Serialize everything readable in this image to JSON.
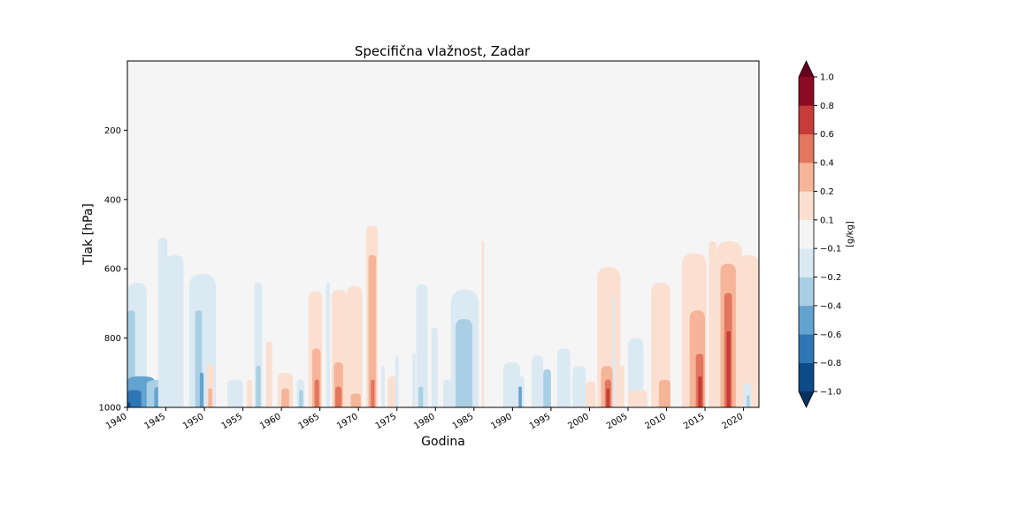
{
  "chart_data": {
    "type": "heatmap",
    "title": "Specifična vlažnost, Zadar",
    "xlabel": "Godina",
    "ylabel": "Tlak [hPa]",
    "xlim": [
      1940,
      2022
    ],
    "ylim": [
      1000,
      0
    ],
    "x_ticks": [
      1940,
      1945,
      1950,
      1955,
      1960,
      1965,
      1970,
      1975,
      1980,
      1985,
      1990,
      1995,
      2000,
      2005,
      2010,
      2015,
      2020
    ],
    "x_tick_labels": [
      "1940",
      "1945",
      "1950",
      "1955",
      "1960",
      "1965",
      "1970",
      "1975",
      "1980",
      "1985",
      "1990",
      "1995",
      "2000",
      "2005",
      "2010",
      "2015",
      "2020"
    ],
    "y_ticks": [
      200,
      400,
      600,
      800,
      1000
    ],
    "y_tick_labels": [
      "200",
      "400",
      "600",
      "800",
      "1000"
    ],
    "background_color": "#f5f5f5",
    "colorbar": {
      "label": "[g/kg]",
      "levels": [
        -1.0,
        -0.8,
        -0.6,
        -0.4,
        -0.2,
        -0.1,
        0.1,
        0.2,
        0.4,
        0.6,
        0.8,
        1.0
      ],
      "tick_labels": [
        "−1.0",
        "−0.8",
        "−0.6",
        "−0.4",
        "−0.2",
        "−0.1",
        "0.1",
        "0.2",
        "0.4",
        "0.6",
        "0.8",
        "1.0"
      ],
      "colors": [
        "#0d4a8a",
        "#2f77b4",
        "#63a3d0",
        "#a9cfe4",
        "#dbe9f3",
        "#f5f5f5",
        "#fbe0d2",
        "#f6b598",
        "#e2765e",
        "#c73b38",
        "#8c0a24"
      ],
      "under_color": "#053061",
      "over_color": "#67001f",
      "extend": "both"
    },
    "anomaly_columns": [
      {
        "x": [
          1940.0,
          1942.5
        ],
        "top": 640,
        "level": -1
      },
      {
        "x": [
          1940.0,
          1941.0
        ],
        "top": 720,
        "level": -2
      },
      {
        "x": [
          1940.0,
          1943.5
        ],
        "top": 910,
        "level": -3
      },
      {
        "x": [
          1940.0,
          1941.8
        ],
        "top": 950,
        "level": -4
      },
      {
        "x": [
          1940.0,
          1940.4
        ],
        "top": 985,
        "level": -5
      },
      {
        "x": [
          1942.5,
          1946.8
        ],
        "top": 920,
        "level": -2
      },
      {
        "x": [
          1943.5,
          1945.5
        ],
        "top": 940,
        "level": -3
      },
      {
        "x": [
          1944.0,
          1945.2
        ],
        "top": 510,
        "level": -1
      },
      {
        "x": [
          1945.0,
          1947.3
        ],
        "top": 560,
        "level": -1
      },
      {
        "x": [
          1948.0,
          1951.5
        ],
        "top": 615,
        "level": -1
      },
      {
        "x": [
          1948.8,
          1949.7
        ],
        "top": 720,
        "level": -2
      },
      {
        "x": [
          1949.4,
          1949.9
        ],
        "top": 900,
        "level": -3
      },
      {
        "x": [
          1950.3,
          1951.2
        ],
        "top": 875,
        "level": 1
      },
      {
        "x": [
          1950.5,
          1951.0
        ],
        "top": 945,
        "level": 2
      },
      {
        "x": [
          1953.0,
          1955.0
        ],
        "top": 920,
        "level": -1
      },
      {
        "x": [
          1956.5,
          1957.5
        ],
        "top": 640,
        "level": -1
      },
      {
        "x": [
          1956.7,
          1957.3
        ],
        "top": 880,
        "level": -2
      },
      {
        "x": [
          1955.5,
          1956.2
        ],
        "top": 920,
        "level": 1
      },
      {
        "x": [
          1958.0,
          1958.8
        ],
        "top": 810,
        "level": 1
      },
      {
        "x": [
          1959.5,
          1961.5
        ],
        "top": 900,
        "level": 1
      },
      {
        "x": [
          1960.0,
          1961.0
        ],
        "top": 945,
        "level": 2
      },
      {
        "x": [
          1962.0,
          1963.0
        ],
        "top": 920,
        "level": -1
      },
      {
        "x": [
          1962.3,
          1962.8
        ],
        "top": 950,
        "level": -2
      },
      {
        "x": [
          1963.5,
          1965.3
        ],
        "top": 665,
        "level": 1
      },
      {
        "x": [
          1964.0,
          1965.1
        ],
        "top": 830,
        "level": 2
      },
      {
        "x": [
          1964.3,
          1964.9
        ],
        "top": 920,
        "level": 3
      },
      {
        "x": [
          1965.8,
          1966.3
        ],
        "top": 640,
        "level": -1
      },
      {
        "x": [
          1966.5,
          1968.5
        ],
        "top": 660,
        "level": 1
      },
      {
        "x": [
          1966.8,
          1968.0
        ],
        "top": 870,
        "level": 2
      },
      {
        "x": [
          1967.0,
          1967.8
        ],
        "top": 940,
        "level": 3
      },
      {
        "x": [
          1968.5,
          1970.5
        ],
        "top": 650,
        "level": 1
      },
      {
        "x": [
          1969.0,
          1970.3
        ],
        "top": 960,
        "level": 2
      },
      {
        "x": [
          1971.0,
          1972.5
        ],
        "top": 475,
        "level": 1
      },
      {
        "x": [
          1971.3,
          1972.3
        ],
        "top": 560,
        "level": 2
      },
      {
        "x": [
          1971.6,
          1972.1
        ],
        "top": 920,
        "level": 3
      },
      {
        "x": [
          1973.0,
          1973.4
        ],
        "top": 880,
        "level": -1
      },
      {
        "x": [
          1973.8,
          1975.0
        ],
        "top": 910,
        "level": 1
      },
      {
        "x": [
          1974.8,
          1975.2
        ],
        "top": 850,
        "level": -1
      },
      {
        "x": [
          1977.0,
          1977.4
        ],
        "top": 845,
        "level": -1
      },
      {
        "x": [
          1977.5,
          1979.0
        ],
        "top": 645,
        "level": -1
      },
      {
        "x": [
          1977.8,
          1978.4
        ],
        "top": 940,
        "level": -2
      },
      {
        "x": [
          1979.5,
          1980.3
        ],
        "top": 770,
        "level": -1
      },
      {
        "x": [
          1981.0,
          1982.0
        ],
        "top": 920,
        "level": -1
      },
      {
        "x": [
          1982.0,
          1985.6
        ],
        "top": 660,
        "level": -1
      },
      {
        "x": [
          1982.6,
          1984.8
        ],
        "top": 745,
        "level": -2
      },
      {
        "x": [
          1986.0,
          1986.3
        ],
        "top": 520,
        "level": 1
      },
      {
        "x": [
          1988.8,
          1991.0
        ],
        "top": 870,
        "level": -1
      },
      {
        "x": [
          1990.5,
          1991.5
        ],
        "top": 910,
        "level": -1
      },
      {
        "x": [
          1990.8,
          1991.2
        ],
        "top": 940,
        "level": -3
      },
      {
        "x": [
          1992.5,
          1994.0
        ],
        "top": 850,
        "level": -1
      },
      {
        "x": [
          1994.0,
          1995.0
        ],
        "top": 890,
        "level": -2
      },
      {
        "x": [
          1995.8,
          1997.5
        ],
        "top": 830,
        "level": -1
      },
      {
        "x": [
          1997.8,
          1999.5
        ],
        "top": 880,
        "level": -1
      },
      {
        "x": [
          1999.5,
          2000.8
        ],
        "top": 925,
        "level": 1
      },
      {
        "x": [
          2001.0,
          2004.0
        ],
        "top": 595,
        "level": 1
      },
      {
        "x": [
          2001.5,
          2003.0
        ],
        "top": 880,
        "level": 2
      },
      {
        "x": [
          2002.0,
          2002.8
        ],
        "top": 920,
        "level": 3
      },
      {
        "x": [
          2002.2,
          2002.6
        ],
        "top": 945,
        "level": 4
      },
      {
        "x": [
          2003.0,
          2003.3
        ],
        "top": 680,
        "level": -1
      },
      {
        "x": [
          2004.0,
          2004.5
        ],
        "top": 880,
        "level": 1
      },
      {
        "x": [
          2005.0,
          2007.0
        ],
        "top": 800,
        "level": -1
      },
      {
        "x": [
          2005.0,
          2007.5
        ],
        "top": 950,
        "level": 1
      },
      {
        "x": [
          2008.0,
          2010.5
        ],
        "top": 640,
        "level": 1
      },
      {
        "x": [
          2009.0,
          2010.5
        ],
        "top": 920,
        "level": 2
      },
      {
        "x": [
          2012.0,
          2015.2
        ],
        "top": 555,
        "level": 1
      },
      {
        "x": [
          2013.0,
          2015.0
        ],
        "top": 720,
        "level": 2
      },
      {
        "x": [
          2013.8,
          2014.8
        ],
        "top": 845,
        "level": 3
      },
      {
        "x": [
          2014.1,
          2014.6
        ],
        "top": 910,
        "level": 4
      },
      {
        "x": [
          2015.5,
          2016.5
        ],
        "top": 520,
        "level": 1
      },
      {
        "x": [
          2016.5,
          2019.8
        ],
        "top": 520,
        "level": 1
      },
      {
        "x": [
          2017.0,
          2019.0
        ],
        "top": 585,
        "level": 2
      },
      {
        "x": [
          2017.5,
          2018.5
        ],
        "top": 670,
        "level": 3
      },
      {
        "x": [
          2017.8,
          2018.3
        ],
        "top": 780,
        "level": 4
      },
      {
        "x": [
          2019.5,
          2022.0
        ],
        "top": 560,
        "level": 1
      },
      {
        "x": [
          2020.0,
          2021.0
        ],
        "top": 930,
        "level": -1
      },
      {
        "x": [
          2020.4,
          2020.8
        ],
        "top": 965,
        "level": -2
      }
    ]
  }
}
